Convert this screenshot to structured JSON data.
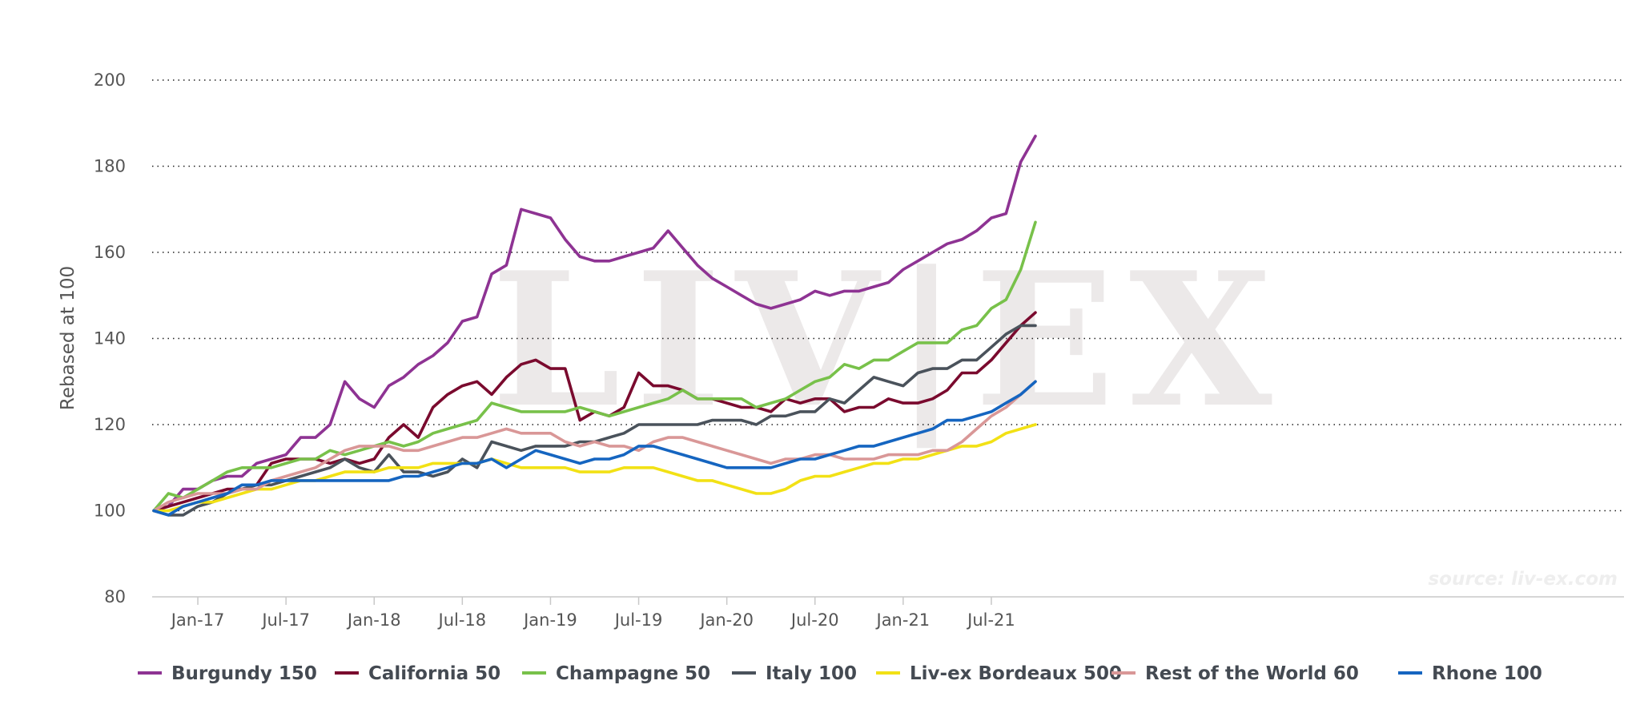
{
  "chart_data": {
    "type": "line",
    "ylabel": "Rebased at 100",
    "ylim": [
      80,
      200
    ],
    "yticks": [
      80,
      100,
      120,
      140,
      160,
      180,
      200
    ],
    "grid": "horizontal-dotted",
    "legend_position": "bottom",
    "watermark": "LIV|EX",
    "source": "source: liv-ex.com",
    "x_start": "2016-10",
    "x_end": "2021-11",
    "xticks": [
      {
        "label": "Jan-17",
        "index": 3
      },
      {
        "label": "Jul-17",
        "index": 9
      },
      {
        "label": "Jan-18",
        "index": 15
      },
      {
        "label": "Jul-18",
        "index": 21
      },
      {
        "label": "Jan-19",
        "index": 27
      },
      {
        "label": "Jul-19",
        "index": 33
      },
      {
        "label": "Jan-20",
        "index": 39
      },
      {
        "label": "Jul-20",
        "index": 45
      },
      {
        "label": "Jan-21",
        "index": 51
      },
      {
        "label": "Jul-21",
        "index": 57
      }
    ],
    "series": [
      {
        "name": "Burgundy 150",
        "color": "#8e3393",
        "values": [
          100,
          101,
          105,
          105,
          107,
          108,
          108,
          111,
          112,
          113,
          117,
          117,
          120,
          130,
          126,
          124,
          129,
          131,
          134,
          136,
          139,
          144,
          145,
          155,
          157,
          170,
          169,
          168,
          163,
          159,
          158,
          158,
          159,
          160,
          161,
          165,
          161,
          157,
          154,
          152,
          150,
          148,
          147,
          148,
          149,
          151,
          150,
          151,
          151,
          152,
          153,
          156,
          158,
          160,
          162,
          163,
          165,
          168,
          169,
          181,
          187
        ]
      },
      {
        "name": "California 50",
        "color": "#7a0a2e",
        "values": [
          100,
          101,
          102,
          103,
          104,
          105,
          105,
          106,
          111,
          112,
          112,
          112,
          111,
          112,
          111,
          112,
          117,
          120,
          117,
          124,
          127,
          129,
          130,
          127,
          131,
          134,
          135,
          133,
          133,
          121,
          123,
          122,
          124,
          132,
          129,
          129,
          128,
          126,
          126,
          125,
          124,
          124,
          123,
          126,
          125,
          126,
          126,
          123,
          124,
          124,
          126,
          125,
          125,
          126,
          128,
          132,
          132,
          135,
          139,
          143,
          146
        ]
      },
      {
        "name": "Champagne 50",
        "color": "#78c14a",
        "values": [
          100,
          104,
          103,
          105,
          107,
          109,
          110,
          110,
          110,
          111,
          112,
          112,
          114,
          113,
          114,
          115,
          116,
          115,
          116,
          118,
          119,
          120,
          121,
          125,
          124,
          123,
          123,
          123,
          123,
          124,
          123,
          122,
          123,
          124,
          125,
          126,
          128,
          126,
          126,
          126,
          126,
          124,
          125,
          126,
          128,
          130,
          131,
          134,
          133,
          135,
          135,
          137,
          139,
          139,
          139,
          142,
          143,
          147,
          149,
          156,
          167
        ]
      },
      {
        "name": "Italy 100",
        "color": "#4a525b",
        "values": [
          100,
          99,
          99,
          101,
          102,
          104,
          105,
          106,
          106,
          107,
          108,
          109,
          110,
          112,
          110,
          109,
          113,
          109,
          109,
          108,
          109,
          112,
          110,
          116,
          115,
          114,
          115,
          115,
          115,
          116,
          116,
          117,
          118,
          120,
          120,
          120,
          120,
          120,
          121,
          121,
          121,
          120,
          122,
          122,
          123,
          123,
          126,
          125,
          128,
          131,
          130,
          129,
          132,
          133,
          133,
          135,
          135,
          138,
          141,
          143,
          143
        ]
      },
      {
        "name": "Liv-ex Bordeaux 500",
        "color": "#f2e115",
        "values": [
          100,
          100,
          101,
          102,
          102,
          103,
          104,
          105,
          105,
          106,
          107,
          107,
          108,
          109,
          109,
          109,
          110,
          110,
          110,
          111,
          111,
          111,
          111,
          112,
          111,
          110,
          110,
          110,
          110,
          109,
          109,
          109,
          110,
          110,
          110,
          109,
          108,
          107,
          107,
          106,
          105,
          104,
          104,
          105,
          107,
          108,
          108,
          109,
          110,
          111,
          111,
          112,
          112,
          113,
          114,
          115,
          115,
          116,
          118,
          119,
          120
        ]
      },
      {
        "name": "Rest of the World 60",
        "color": "#d99797",
        "values": [
          100,
          102,
          103,
          104,
          104,
          104,
          105,
          105,
          107,
          108,
          109,
          110,
          112,
          114,
          115,
          115,
          115,
          114,
          114,
          115,
          116,
          117,
          117,
          118,
          119,
          118,
          118,
          118,
          116,
          115,
          116,
          115,
          115,
          114,
          116,
          117,
          117,
          116,
          115,
          114,
          113,
          112,
          111,
          112,
          112,
          113,
          113,
          112,
          112,
          112,
          113,
          113,
          113,
          114,
          114,
          116,
          119,
          122,
          124,
          127,
          130
        ]
      },
      {
        "name": "Rhone 100",
        "color": "#1565c0",
        "values": [
          100,
          99,
          101,
          102,
          103,
          104,
          106,
          106,
          107,
          107,
          107,
          107,
          107,
          107,
          107,
          107,
          107,
          108,
          108,
          109,
          110,
          111,
          111,
          112,
          110,
          112,
          114,
          113,
          112,
          111,
          112,
          112,
          113,
          115,
          115,
          114,
          113,
          112,
          111,
          110,
          110,
          110,
          110,
          111,
          112,
          112,
          113,
          114,
          115,
          115,
          116,
          117,
          118,
          119,
          121,
          121,
          122,
          123,
          125,
          127,
          130
        ]
      }
    ]
  }
}
